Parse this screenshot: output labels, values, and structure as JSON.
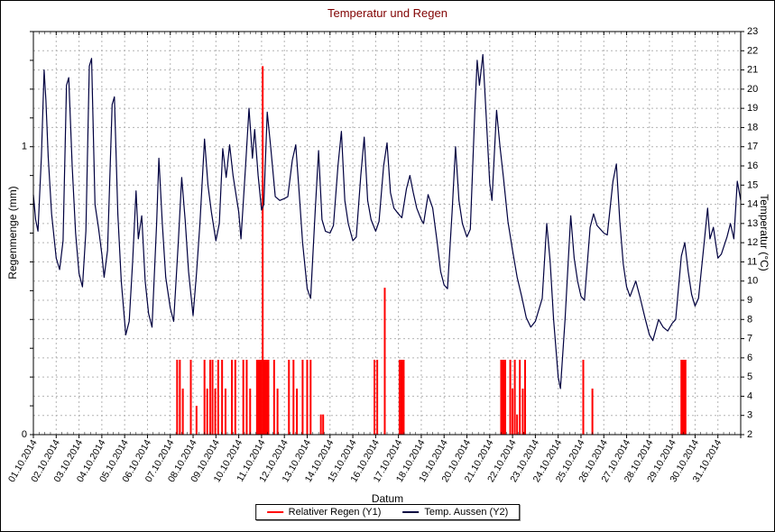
{
  "chart_data": {
    "type": "line",
    "title": "Temperatur und Regen",
    "title_color": "#800000",
    "xlabel": "Datum",
    "ylabel_left": "Regenmenge (mm)",
    "ylabel_right": "Temperatur (°C)",
    "grid_color": "#b4b4b4",
    "legend_position": "bottom-center",
    "x_range": [
      0,
      31
    ],
    "x_tick_labels": [
      "01.10.2014",
      "02.10.2014",
      "03.10.2014",
      "04.10.2014",
      "05.10.2014",
      "06.10.2014",
      "07.10.2014",
      "08.10.2014",
      "09.10.2014",
      "10.10.2014",
      "11.10.2014",
      "12.10.2014",
      "13.10.2014",
      "14.10.2014",
      "15.10.2014",
      "16.10.2014",
      "17.10.2014",
      "18.10.2014",
      "19.10.2014",
      "20.10.2014",
      "21.10.2014",
      "22.10.2014",
      "23.10.2014",
      "24.10.2014",
      "25.10.2014",
      "26.10.2014",
      "27.10.2014",
      "28.10.2014",
      "29.10.2014",
      "30.10.2014",
      "31.10.2014"
    ],
    "y_left_range": [
      0,
      1.4
    ],
    "y_left_ticks": [
      {
        "value": 0,
        "label": "0"
      },
      {
        "value": 1,
        "label": "1"
      }
    ],
    "y_right_range": [
      2,
      23
    ],
    "y_right_tick_step": 1,
    "series": [
      {
        "name": "Relativer Regen (Y1)",
        "kind": "bar",
        "axis": "left",
        "color": "#FF0000",
        "points": [
          [
            6.3,
            0.26
          ],
          [
            6.42,
            0.26
          ],
          [
            6.55,
            0.16
          ],
          [
            6.9,
            0.26
          ],
          [
            7.15,
            0.1
          ],
          [
            7.5,
            0.26
          ],
          [
            7.62,
            0.16
          ],
          [
            7.75,
            0.26
          ],
          [
            7.85,
            0.26
          ],
          [
            7.97,
            0.16
          ],
          [
            8.1,
            0.26
          ],
          [
            8.27,
            0.26
          ],
          [
            8.42,
            0.16
          ],
          [
            8.7,
            0.26
          ],
          [
            8.85,
            0.26
          ],
          [
            9.2,
            0.26
          ],
          [
            9.35,
            0.26
          ],
          [
            9.5,
            0.16
          ],
          [
            9.8,
            0.26
          ],
          [
            9.86,
            0.26
          ],
          [
            9.92,
            0.26
          ],
          [
            9.98,
            0.26
          ],
          [
            10.05,
            1.28
          ],
          [
            10.12,
            0.26
          ],
          [
            10.18,
            0.26
          ],
          [
            10.24,
            0.26
          ],
          [
            10.3,
            0.26
          ],
          [
            10.55,
            0.26
          ],
          [
            10.7,
            0.16
          ],
          [
            11.2,
            0.26
          ],
          [
            11.4,
            0.26
          ],
          [
            11.55,
            0.16
          ],
          [
            11.8,
            0.26
          ],
          [
            12.0,
            0.26
          ],
          [
            12.15,
            0.26
          ],
          [
            12.6,
            0.07
          ],
          [
            12.7,
            0.07
          ],
          [
            14.95,
            0.26
          ],
          [
            15.07,
            0.26
          ],
          [
            15.4,
            0.51
          ],
          [
            16.05,
            0.26
          ],
          [
            16.11,
            0.26
          ],
          [
            16.17,
            0.26
          ],
          [
            16.23,
            0.26
          ],
          [
            20.5,
            0.26
          ],
          [
            20.56,
            0.26
          ],
          [
            20.62,
            0.26
          ],
          [
            20.68,
            0.26
          ],
          [
            20.9,
            0.26
          ],
          [
            21.0,
            0.16
          ],
          [
            21.1,
            0.26
          ],
          [
            21.2,
            0.07
          ],
          [
            21.32,
            0.26
          ],
          [
            21.45,
            0.16
          ],
          [
            21.55,
            0.26
          ],
          [
            24.1,
            0.26
          ],
          [
            24.5,
            0.16
          ],
          [
            28.4,
            0.26
          ],
          [
            28.46,
            0.26
          ],
          [
            28.52,
            0.26
          ],
          [
            28.58,
            0.26
          ]
        ]
      },
      {
        "name": "Temp. Aussen (Y2)",
        "kind": "line",
        "axis": "right",
        "color": "#000040",
        "points": [
          [
            0,
            14.5
          ],
          [
            0.1,
            13.2
          ],
          [
            0.2,
            12.6
          ],
          [
            0.35,
            16.5
          ],
          [
            0.47,
            21
          ],
          [
            0.55,
            19.4
          ],
          [
            0.65,
            16.5
          ],
          [
            0.8,
            13.5
          ],
          [
            1,
            11.2
          ],
          [
            1.15,
            10.6
          ],
          [
            1.3,
            12.1
          ],
          [
            1.45,
            20.2
          ],
          [
            1.55,
            20.6
          ],
          [
            1.7,
            16
          ],
          [
            1.85,
            12.5
          ],
          [
            2,
            10.4
          ],
          [
            2.15,
            9.7
          ],
          [
            2.3,
            12.6
          ],
          [
            2.45,
            21.2
          ],
          [
            2.55,
            21.6
          ],
          [
            2.7,
            14
          ],
          [
            2.85,
            12.8
          ],
          [
            3,
            11.4
          ],
          [
            3.1,
            10.2
          ],
          [
            3.25,
            11.6
          ],
          [
            3.45,
            19.2
          ],
          [
            3.55,
            19.6
          ],
          [
            3.7,
            13.5
          ],
          [
            3.85,
            10
          ],
          [
            4.05,
            7.2
          ],
          [
            4.2,
            7.9
          ],
          [
            4.35,
            11
          ],
          [
            4.5,
            14.7
          ],
          [
            4.6,
            12.2
          ],
          [
            4.75,
            13.4
          ],
          [
            4.9,
            10
          ],
          [
            5.05,
            8.3
          ],
          [
            5.2,
            7.6
          ],
          [
            5.4,
            13
          ],
          [
            5.5,
            16.4
          ],
          [
            5.65,
            13
          ],
          [
            5.8,
            10.2
          ],
          [
            6,
            8.6
          ],
          [
            6.15,
            7.9
          ],
          [
            6.35,
            12
          ],
          [
            6.5,
            15.4
          ],
          [
            6.65,
            13.2
          ],
          [
            6.8,
            10.5
          ],
          [
            7,
            8.2
          ],
          [
            7.15,
            10.4
          ],
          [
            7.3,
            13
          ],
          [
            7.5,
            17.4
          ],
          [
            7.65,
            15
          ],
          [
            7.8,
            13.6
          ],
          [
            8,
            12.1
          ],
          [
            8.15,
            13
          ],
          [
            8.3,
            16.9
          ],
          [
            8.45,
            15.4
          ],
          [
            8.6,
            17.1
          ],
          [
            8.75,
            15.5
          ],
          [
            9,
            13.6
          ],
          [
            9.1,
            12.2
          ],
          [
            9.3,
            16
          ],
          [
            9.45,
            19
          ],
          [
            9.6,
            16.4
          ],
          [
            9.7,
            17.9
          ],
          [
            9.85,
            15.5
          ],
          [
            10,
            13.7
          ],
          [
            10.1,
            14
          ],
          [
            10.25,
            18.8
          ],
          [
            10.4,
            17
          ],
          [
            10.6,
            14.4
          ],
          [
            10.8,
            14.2
          ],
          [
            11,
            14.3
          ],
          [
            11.15,
            14.4
          ],
          [
            11.35,
            16.3
          ],
          [
            11.5,
            17.1
          ],
          [
            11.65,
            14.6
          ],
          [
            11.8,
            12
          ],
          [
            12,
            9.6
          ],
          [
            12.15,
            9.1
          ],
          [
            12.35,
            13.6
          ],
          [
            12.5,
            16.8
          ],
          [
            12.65,
            13.2
          ],
          [
            12.8,
            12.6
          ],
          [
            13,
            12.5
          ],
          [
            13.15,
            12.9
          ],
          [
            13.35,
            16
          ],
          [
            13.5,
            17.8
          ],
          [
            13.65,
            14.2
          ],
          [
            13.8,
            13
          ],
          [
            14,
            12.1
          ],
          [
            14.15,
            12.3
          ],
          [
            14.35,
            15.5
          ],
          [
            14.5,
            17.5
          ],
          [
            14.65,
            14.2
          ],
          [
            14.8,
            13.2
          ],
          [
            15,
            12.6
          ],
          [
            15.15,
            13.1
          ],
          [
            15.35,
            16
          ],
          [
            15.5,
            17.2
          ],
          [
            15.65,
            14.6
          ],
          [
            15.8,
            13.8
          ],
          [
            16,
            13.5
          ],
          [
            16.15,
            13.3
          ],
          [
            16.35,
            14.8
          ],
          [
            16.5,
            15.5
          ],
          [
            16.65,
            14.6
          ],
          [
            16.8,
            13.8
          ],
          [
            17,
            13.2
          ],
          [
            17.1,
            13
          ],
          [
            17.3,
            14.5
          ],
          [
            17.5,
            13.8
          ],
          [
            17.7,
            12
          ],
          [
            17.85,
            10.5
          ],
          [
            18,
            9.8
          ],
          [
            18.15,
            9.6
          ],
          [
            18.35,
            13.6
          ],
          [
            18.5,
            17
          ],
          [
            18.65,
            14.2
          ],
          [
            18.8,
            13
          ],
          [
            19,
            12.3
          ],
          [
            19.15,
            12.7
          ],
          [
            19.35,
            19
          ],
          [
            19.45,
            21.5
          ],
          [
            19.55,
            20.2
          ],
          [
            19.7,
            21.8
          ],
          [
            19.85,
            18.5
          ],
          [
            20,
            15.1
          ],
          [
            20.1,
            14.2
          ],
          [
            20.3,
            18.9
          ],
          [
            20.45,
            17
          ],
          [
            20.6,
            15.4
          ],
          [
            20.8,
            13.1
          ],
          [
            21,
            11.6
          ],
          [
            21.2,
            10.2
          ],
          [
            21.4,
            9.2
          ],
          [
            21.6,
            8.1
          ],
          [
            21.8,
            7.6
          ],
          [
            22,
            7.9
          ],
          [
            22.1,
            8.3
          ],
          [
            22.3,
            9.1
          ],
          [
            22.5,
            13
          ],
          [
            22.65,
            11
          ],
          [
            22.8,
            8
          ],
          [
            23,
            5
          ],
          [
            23.1,
            4.4
          ],
          [
            23.3,
            8
          ],
          [
            23.55,
            13.4
          ],
          [
            23.7,
            11.2
          ],
          [
            23.85,
            10
          ],
          [
            24,
            9.2
          ],
          [
            24.15,
            9
          ],
          [
            24.4,
            12.8
          ],
          [
            24.55,
            13.5
          ],
          [
            24.7,
            12.9
          ],
          [
            25,
            12.5
          ],
          [
            25.15,
            12.4
          ],
          [
            25.4,
            15.2
          ],
          [
            25.55,
            16.1
          ],
          [
            25.7,
            13.1
          ],
          [
            25.85,
            10.9
          ],
          [
            26,
            9.7
          ],
          [
            26.15,
            9.2
          ],
          [
            26.4,
            10
          ],
          [
            26.6,
            9.1
          ],
          [
            26.8,
            8.1
          ],
          [
            27,
            7.2
          ],
          [
            27.15,
            6.9
          ],
          [
            27.4,
            8
          ],
          [
            27.6,
            7.6
          ],
          [
            27.8,
            7.4
          ],
          [
            28,
            7.8
          ],
          [
            28.15,
            8
          ],
          [
            28.4,
            11.3
          ],
          [
            28.55,
            12
          ],
          [
            28.7,
            10.5
          ],
          [
            28.85,
            9.3
          ],
          [
            29,
            8.7
          ],
          [
            29.15,
            9.1
          ],
          [
            29.4,
            12
          ],
          [
            29.55,
            13.8
          ],
          [
            29.65,
            12.2
          ],
          [
            29.8,
            12.8
          ],
          [
            30,
            11.2
          ],
          [
            30.15,
            11.4
          ],
          [
            30.4,
            12.3
          ],
          [
            30.55,
            13
          ],
          [
            30.7,
            12.2
          ],
          [
            30.85,
            15.2
          ],
          [
            31,
            14.2
          ]
        ]
      }
    ]
  }
}
